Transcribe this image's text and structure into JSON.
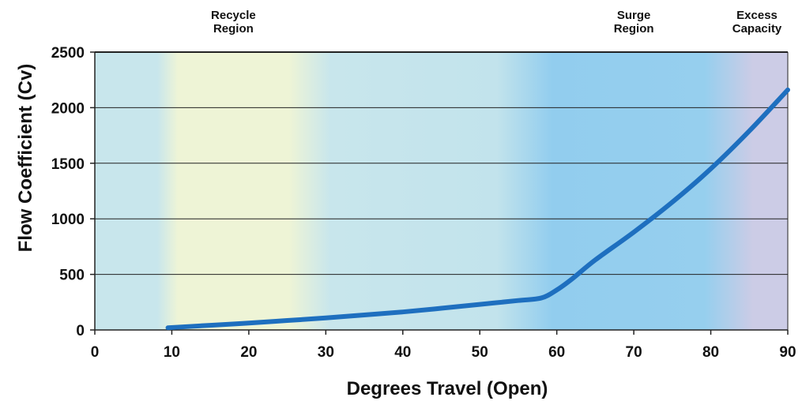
{
  "chart_data": {
    "type": "line",
    "title": "",
    "xlabel": "Degrees Travel (Open)",
    "ylabel": "Flow Coefficient (Cv)",
    "xlim": [
      0,
      90
    ],
    "ylim": [
      0,
      2500
    ],
    "xticks": [
      0,
      10,
      20,
      30,
      40,
      50,
      60,
      70,
      80,
      90
    ],
    "yticks": [
      0,
      500,
      1000,
      1500,
      2000,
      2500
    ],
    "grid": "horizontal",
    "legend": "none",
    "series": [
      {
        "name": "",
        "color": "#1e6fbf",
        "x": [
          9.5,
          15,
          20,
          25,
          30,
          35,
          40,
          45,
          50,
          55,
          58,
          60,
          62,
          65,
          70,
          75,
          80,
          85,
          90
        ],
        "y": [
          20,
          42,
          62,
          85,
          108,
          135,
          162,
          195,
          230,
          265,
          288,
          360,
          460,
          630,
          880,
          1150,
          1450,
          1790,
          2160
        ]
      }
    ],
    "regions": [
      {
        "label": [
          "Recycle",
          "Region"
        ],
        "x_center": 18
      },
      {
        "label": [
          "Surge",
          "Region"
        ],
        "x_center": 70
      },
      {
        "label": [
          "Excess",
          "Capacity"
        ],
        "x_center": 86
      }
    ],
    "background_colors": {
      "base": "#c8e6ec",
      "recycle": "#eef4d6",
      "surge": "#92cdee",
      "excess": "#cccce6",
      "line": "#1e6fbf",
      "grid": "#222222"
    }
  }
}
